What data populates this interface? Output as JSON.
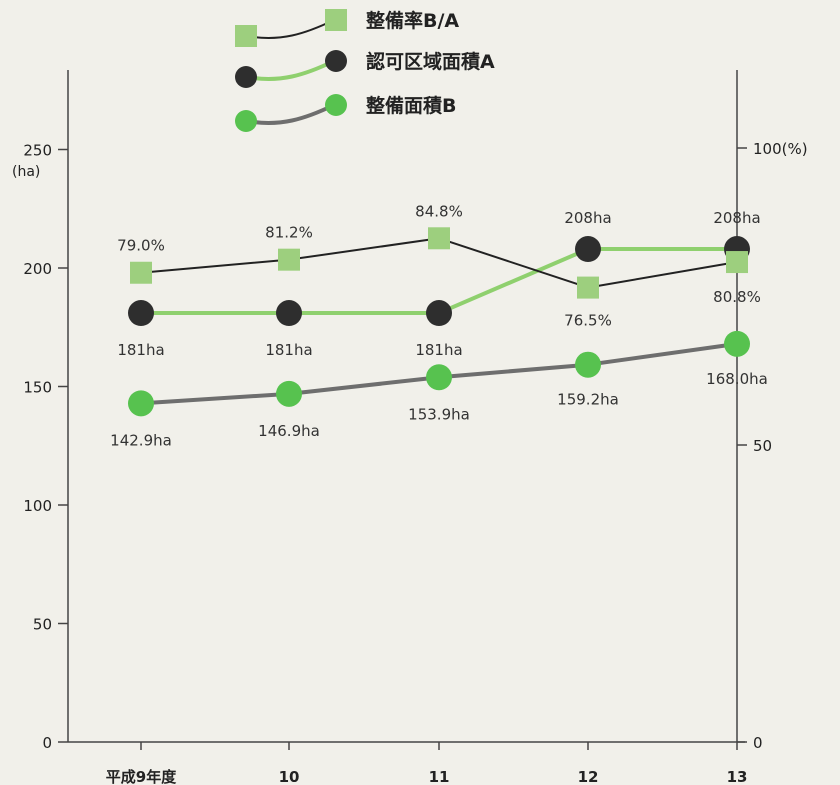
{
  "colors": {
    "background": "#f1f0ea",
    "axis": "#444444",
    "ratio_line": "#222222",
    "ratio_marker": "#9dcf7e",
    "area_a_line": "#8fd06e",
    "area_a_marker": "#2e2e2e",
    "area_b_line": "#6e6e6e",
    "area_b_marker": "#57c24f"
  },
  "legend": [
    {
      "label": "整備率B/A",
      "series": "ratio"
    },
    {
      "label": "認可区域面積A",
      "series": "area_a"
    },
    {
      "label": "整備面積B",
      "series": "area_b"
    }
  ],
  "chart_data": {
    "type": "line",
    "categories": [
      "平成9年度",
      "10",
      "11",
      "12",
      "13"
    ],
    "left_axis": {
      "unit": "(ha)",
      "ticks": [
        0,
        50,
        100,
        150,
        200,
        250
      ],
      "ylim": [
        0,
        250
      ]
    },
    "right_axis": {
      "ticks": [
        0,
        50,
        100
      ],
      "tick_labels": [
        "0",
        "50",
        "100(%)"
      ],
      "ylim": [
        0,
        100
      ]
    },
    "series": [
      {
        "name": "整備率B/A",
        "key": "ratio",
        "axis": "right",
        "marker": "square",
        "values": [
          79.0,
          81.2,
          84.8,
          76.5,
          80.8
        ],
        "labels": [
          "79.0%",
          "81.2%",
          "84.8%",
          "76.5%",
          "80.8%"
        ]
      },
      {
        "name": "認可区域面積A",
        "key": "area_a",
        "axis": "left",
        "marker": "circle",
        "values": [
          181,
          181,
          181,
          208,
          208
        ],
        "labels": [
          "181ha",
          "181ha",
          "181ha",
          "208ha",
          "208ha"
        ]
      },
      {
        "name": "整備面積B",
        "key": "area_b",
        "axis": "left",
        "marker": "circle",
        "values": [
          142.9,
          146.9,
          153.9,
          159.2,
          168.0
        ],
        "labels": [
          "142.9ha",
          "146.9ha",
          "153.9ha",
          "159.2ha",
          "168.0ha"
        ]
      }
    ],
    "legend_position": "top-center"
  }
}
